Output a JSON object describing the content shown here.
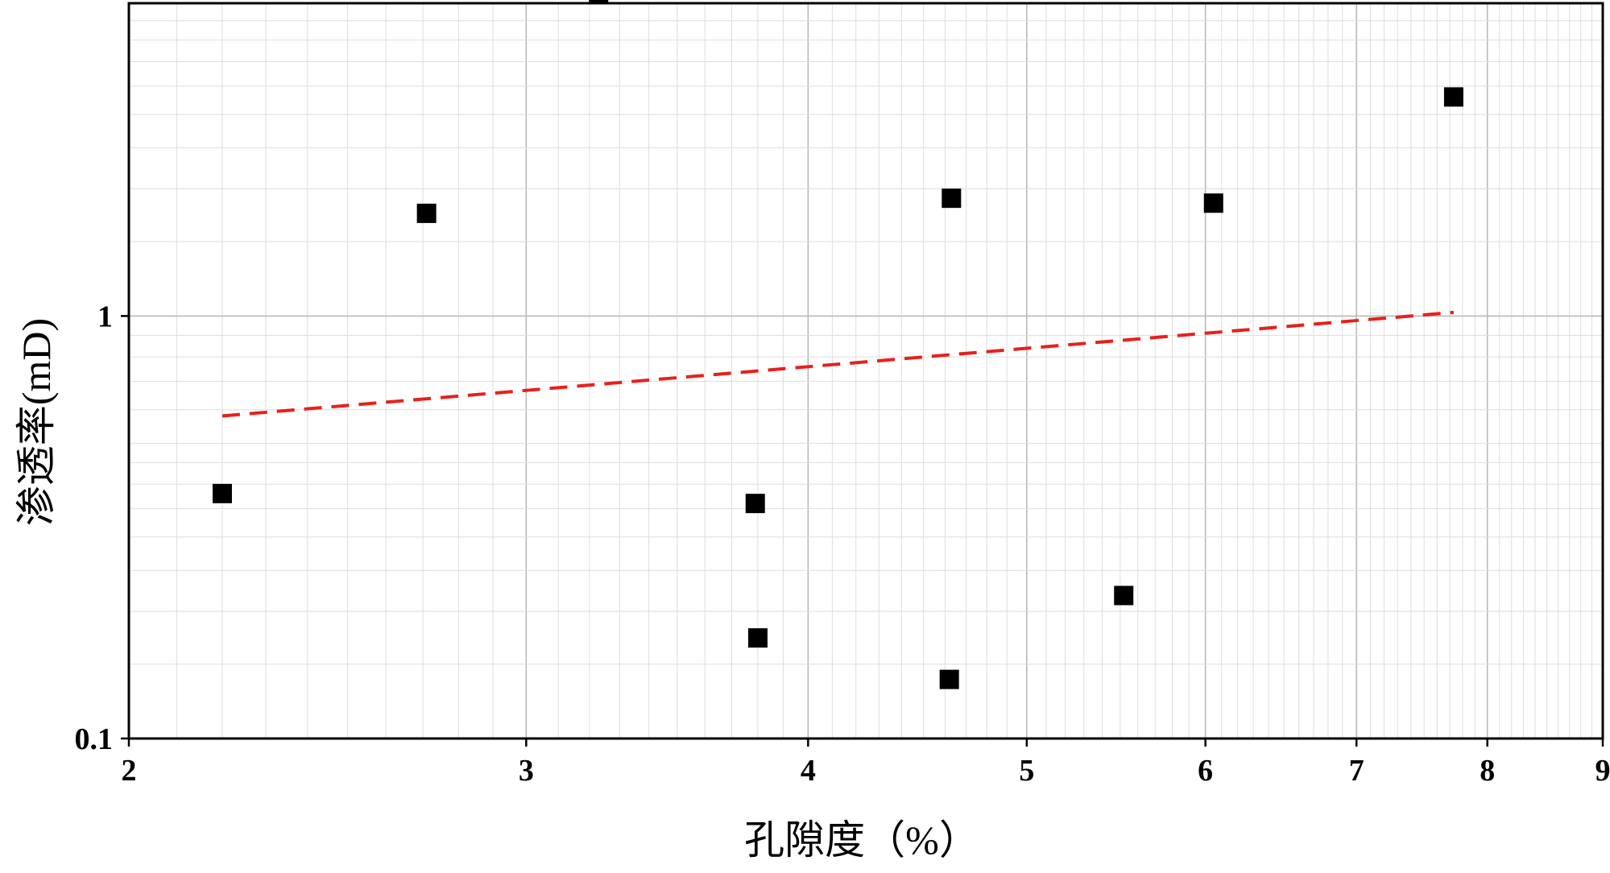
{
  "chart_data": {
    "type": "scatter",
    "title": "",
    "xlabel": "孔隙度（%）",
    "ylabel": "渗透率(mD)",
    "x_scale": "log",
    "y_scale": "log",
    "xlim": [
      2,
      9
    ],
    "ylim": [
      0.1,
      5.5
    ],
    "x_ticks": [
      2,
      3,
      4,
      5,
      6,
      7,
      8,
      9
    ],
    "x_tick_labels": [
      "2",
      "3",
      "4",
      "5",
      "6",
      "7",
      "8",
      "9"
    ],
    "y_ticks": [
      0.1,
      1
    ],
    "y_tick_labels": [
      "0.1",
      "1"
    ],
    "grid": true,
    "series": [
      {
        "marker": "square",
        "color": "#000000",
        "points": [
          {
            "x": 2.2,
            "y": 0.38
          },
          {
            "x": 2.71,
            "y": 1.75
          },
          {
            "x": 3.23,
            "y": 5.8
          },
          {
            "x": 3.79,
            "y": 0.36
          },
          {
            "x": 3.8,
            "y": 0.173
          },
          {
            "x": 4.63,
            "y": 1.9
          },
          {
            "x": 4.62,
            "y": 0.138
          },
          {
            "x": 5.52,
            "y": 0.218
          },
          {
            "x": 6.05,
            "y": 1.85
          },
          {
            "x": 7.73,
            "y": 3.3
          }
        ]
      },
      {
        "type": "line",
        "style": "dashed",
        "color": "#e8201a",
        "points": [
          {
            "x": 2.2,
            "y": 0.58
          },
          {
            "x": 7.73,
            "y": 1.02
          }
        ]
      }
    ]
  }
}
